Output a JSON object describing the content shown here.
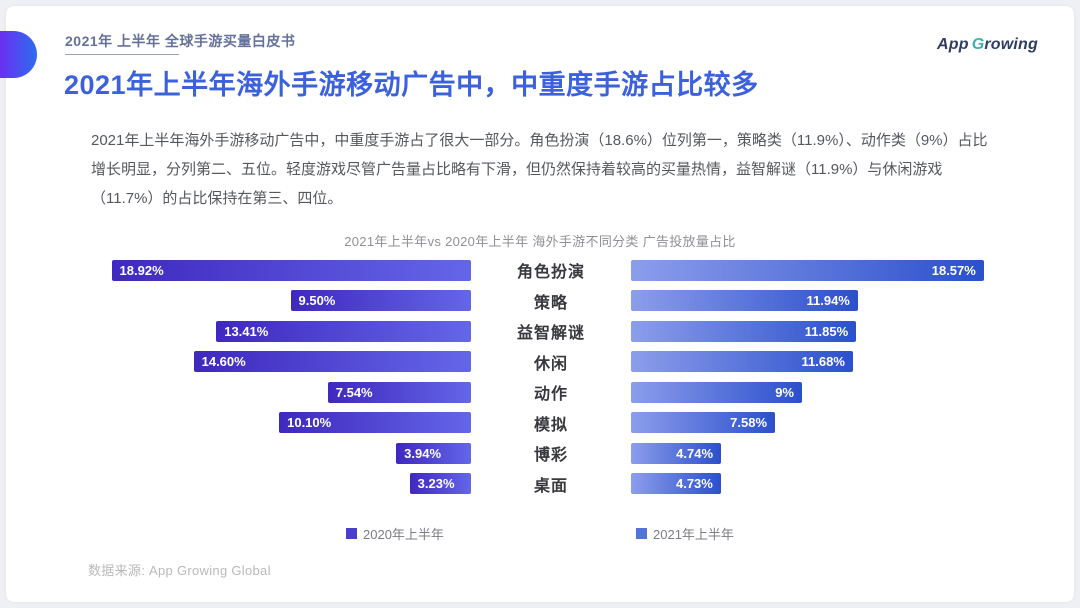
{
  "page": {
    "eyebrow": "2021年 上半年 全球手游买量白皮书",
    "title": "2021年上半年海外手游移动广告中，中重度手游占比较多",
    "paragraph": "2021年上半年海外手游移动广告中，中重度手游占了很大一部分。角色扮演（18.6%）位列第一，策略类（11.9%）、动作类（9%）占比增长明显，分列第二、五位。轻度游戏尽管广告量占比略有下滑，但仍然保持着较高的买量热情，益智解谜（11.9%）与休闲游戏（11.7%）的占比保持在第三、四位。",
    "source": "数据来源: App Growing Global"
  },
  "logo": {
    "app": "App",
    "g": "G",
    "rest": "rowing"
  },
  "theme": {
    "title_color": "#3c61dc",
    "eyebrow_color": "#64719a",
    "pill_gradient": [
      "#6a2ff0",
      "#2e6cf0"
    ]
  },
  "chart_data": {
    "type": "bar",
    "orientation": "horizontal-tornado",
    "title": "2021年上半年vs 2020年上半年 海外手游不同分类 广告投放量占比",
    "categories": [
      "角色扮演",
      "策略",
      "益智解谜",
      "休闲",
      "动作",
      "模拟",
      "博彩",
      "桌面"
    ],
    "series": [
      {
        "name": "2020年上半年",
        "values": [
          18.92,
          9.5,
          13.41,
          14.6,
          7.54,
          10.1,
          3.94,
          3.23
        ],
        "labels": [
          "18.92%",
          "9.50%",
          "13.41%",
          "14.60%",
          "7.54%",
          "10.10%",
          "3.94%",
          "3.23%"
        ],
        "color_start": "#3f28bf",
        "color_end": "#6466e8",
        "legend_color": "#4a3ed0"
      },
      {
        "name": "2021年上半年",
        "values": [
          18.57,
          11.94,
          11.85,
          11.68,
          9,
          7.58,
          4.74,
          4.73
        ],
        "labels": [
          "18.57%",
          "11.94%",
          "11.85%",
          "11.68%",
          "9%",
          "7.58%",
          "4.74%",
          "4.73%"
        ],
        "color_start": "#8c9deb",
        "color_end": "#2b50cc",
        "legend_color": "#5273d8"
      }
    ],
    "legend": [
      "2020年上半年",
      "2021年上半年"
    ],
    "legend_position": "bottom",
    "value_axis_max": 20,
    "grid": false
  }
}
